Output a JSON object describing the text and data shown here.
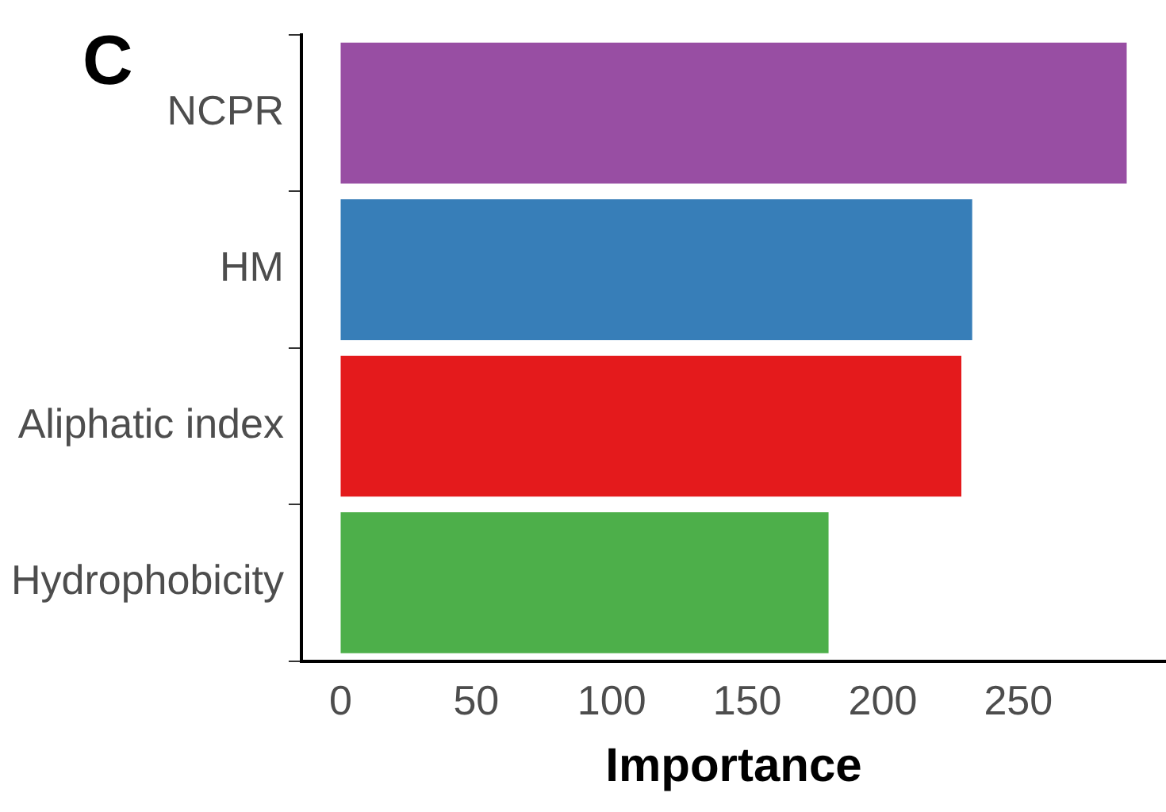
{
  "chart_data": {
    "type": "bar",
    "orientation": "horizontal",
    "xlabel": "Importance",
    "categories": [
      "NCPR",
      "HM",
      "Aliphatic index",
      "Hydrophobicity"
    ],
    "values": [
      290,
      233,
      229,
      180
    ],
    "colors": [
      "#984ea3",
      "#377eb8",
      "#e41a1c",
      "#4daf4a"
    ],
    "xlim": [
      -14.5,
      304.5
    ],
    "xticks": [
      0,
      50,
      100,
      150,
      200,
      250
    ],
    "grid": false,
    "legend": false,
    "annotations": [
      "C"
    ]
  }
}
